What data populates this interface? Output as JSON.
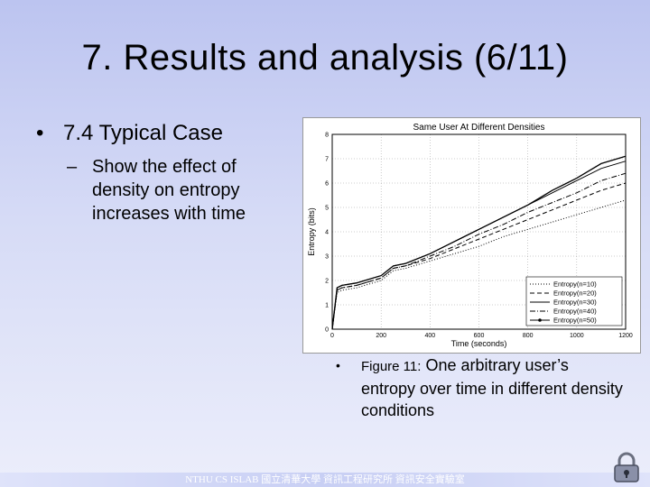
{
  "slide": {
    "title": "7. Results and analysis (6/11)",
    "bullet1": "7.4  Typical Case",
    "bullet2": "Show the effect of density on entropy increases with time",
    "caption_label": "Figure 11:",
    "caption_text": "One arbitrary user’s entropy over time in different density conditions",
    "footer": "NTHU CS ISLAB  國立清華大學 資訊工程研究所 資訊安全實驗室"
  },
  "chart_data": {
    "type": "line",
    "title": "Same User At Different Densities",
    "xlabel": "Time (seconds)",
    "ylabel": "Entropy (bits)",
    "xlim": [
      0,
      1200
    ],
    "ylim": [
      0,
      8
    ],
    "xticks": [
      0,
      200,
      400,
      600,
      800,
      1000,
      1200
    ],
    "yticks": [
      0,
      1,
      2,
      3,
      4,
      5,
      6,
      7,
      8
    ],
    "grid": true,
    "legend_position": "bottom-right",
    "series": [
      {
        "name": "Entropy(n=10)",
        "style": "dotted",
        "x": [
          0,
          20,
          40,
          100,
          200,
          250,
          300,
          400,
          500,
          600,
          700,
          800,
          900,
          1000,
          1100,
          1200
        ],
        "y": [
          0,
          1.5,
          1.6,
          1.7,
          2.0,
          2.4,
          2.5,
          2.8,
          3.1,
          3.4,
          3.8,
          4.1,
          4.4,
          4.7,
          5.0,
          5.3
        ]
      },
      {
        "name": "Entropy(n=20)",
        "style": "dashed",
        "x": [
          0,
          20,
          40,
          100,
          200,
          250,
          300,
          400,
          500,
          600,
          700,
          800,
          900,
          1000,
          1100,
          1200
        ],
        "y": [
          0,
          1.6,
          1.7,
          1.8,
          2.1,
          2.5,
          2.6,
          2.9,
          3.3,
          3.7,
          4.1,
          4.5,
          4.9,
          5.3,
          5.7,
          6.0
        ]
      },
      {
        "name": "Entropy(n=30)",
        "style": "solid",
        "x": [
          0,
          20,
          40,
          100,
          200,
          250,
          300,
          400,
          500,
          600,
          700,
          800,
          900,
          1000,
          1100,
          1200
        ],
        "y": [
          0,
          1.7,
          1.8,
          1.9,
          2.2,
          2.6,
          2.7,
          3.1,
          3.6,
          4.1,
          4.6,
          5.1,
          5.7,
          6.2,
          6.8,
          7.1
        ]
      },
      {
        "name": "Entropy(n=40)",
        "style": "dashdot",
        "x": [
          0,
          20,
          40,
          100,
          200,
          250,
          300,
          400,
          500,
          600,
          700,
          800,
          900,
          1000,
          1100,
          1200
        ],
        "y": [
          0,
          1.6,
          1.7,
          1.8,
          2.1,
          2.5,
          2.6,
          3.0,
          3.4,
          3.9,
          4.3,
          4.8,
          5.2,
          5.6,
          6.1,
          6.4
        ]
      },
      {
        "name": "Entropy(n=50)",
        "style": "solid-marker",
        "x": [
          0,
          20,
          40,
          100,
          200,
          250,
          300,
          400,
          500,
          600,
          700,
          800,
          900,
          1000,
          1100,
          1200
        ],
        "y": [
          0,
          1.7,
          1.8,
          1.9,
          2.2,
          2.6,
          2.7,
          3.1,
          3.6,
          4.1,
          4.6,
          5.1,
          5.6,
          6.1,
          6.6,
          6.9
        ]
      }
    ]
  }
}
